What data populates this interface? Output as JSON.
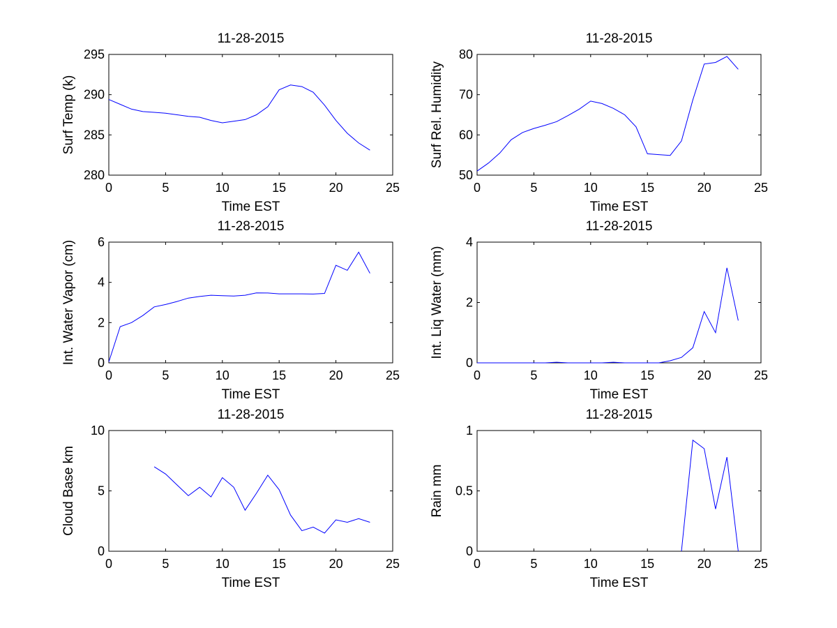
{
  "colors": {
    "line": "#0000ff",
    "axis": "#000000",
    "background": "#ffffff"
  },
  "chart_data": [
    {
      "type": "line",
      "title": "11-28-2015",
      "xlabel": "Time EST",
      "ylabel": "Surf Temp (k)",
      "xlim": [
        0,
        25
      ],
      "ylim": [
        280,
        295
      ],
      "xticks": [
        0,
        5,
        10,
        15,
        20,
        25
      ],
      "yticks": [
        280,
        285,
        290,
        295
      ],
      "x": [
        0,
        1,
        2,
        3,
        4,
        5,
        6,
        7,
        8,
        9,
        10,
        11,
        12,
        13,
        14,
        15,
        16,
        17,
        18,
        19,
        20,
        21,
        22,
        23
      ],
      "y": [
        289.4,
        288.8,
        288.2,
        287.9,
        287.8,
        287.7,
        287.5,
        287.3,
        287.2,
        286.8,
        286.5,
        286.7,
        286.9,
        287.5,
        288.5,
        290.6,
        291.2,
        291.0,
        290.3,
        288.7,
        286.8,
        285.2,
        284.0,
        283.1
      ]
    },
    {
      "type": "line",
      "title": "11-28-2015",
      "xlabel": "Time EST",
      "ylabel": "Surf Rel. Humidity",
      "xlim": [
        0,
        25
      ],
      "ylim": [
        50,
        80
      ],
      "xticks": [
        0,
        5,
        10,
        15,
        20,
        25
      ],
      "yticks": [
        50,
        60,
        70,
        80
      ],
      "x": [
        0,
        1,
        2,
        3,
        4,
        5,
        6,
        7,
        8,
        9,
        10,
        11,
        12,
        13,
        14,
        15,
        16,
        17,
        18,
        19,
        20,
        21,
        22,
        23
      ],
      "y": [
        51.0,
        53.0,
        55.5,
        58.8,
        60.6,
        61.6,
        62.4,
        63.3,
        64.8,
        66.4,
        68.4,
        67.8,
        66.6,
        65.0,
        62.0,
        55.3,
        55.1,
        54.9,
        58.5,
        68.7,
        77.6,
        78.0,
        79.5,
        76.3
      ]
    },
    {
      "type": "line",
      "title": "11-28-2015",
      "xlabel": "Time EST",
      "ylabel": "Int. Water Vapor (cm)",
      "xlim": [
        0,
        25
      ],
      "ylim": [
        0,
        6
      ],
      "xticks": [
        0,
        5,
        10,
        15,
        20,
        25
      ],
      "yticks": [
        0,
        2,
        4,
        6
      ],
      "x": [
        0,
        1,
        2,
        3,
        4,
        5,
        6,
        7,
        8,
        9,
        10,
        11,
        12,
        13,
        14,
        15,
        16,
        17,
        18,
        19,
        20,
        21,
        22,
        23
      ],
      "y": [
        0.05,
        1.8,
        2.0,
        2.35,
        2.78,
        2.9,
        3.05,
        3.22,
        3.3,
        3.36,
        3.34,
        3.32,
        3.36,
        3.48,
        3.47,
        3.43,
        3.43,
        3.43,
        3.42,
        3.45,
        4.85,
        4.6,
        5.5,
        4.45
      ]
    },
    {
      "type": "line",
      "title": "11-28-2015",
      "xlabel": "Time EST",
      "ylabel": "Int. Liq Water (mm)",
      "xlim": [
        0,
        25
      ],
      "ylim": [
        0,
        4
      ],
      "xticks": [
        0,
        5,
        10,
        15,
        20,
        25
      ],
      "yticks": [
        0,
        2,
        4
      ],
      "x": [
        0,
        1,
        2,
        3,
        4,
        5,
        6,
        7,
        8,
        9,
        10,
        11,
        12,
        13,
        14,
        15,
        16,
        17,
        18,
        19,
        20,
        21,
        22,
        23
      ],
      "y": [
        0,
        0,
        0,
        0,
        0,
        0,
        0,
        0.02,
        0,
        0,
        0,
        0,
        0.02,
        0,
        0,
        0,
        0,
        0.07,
        0.18,
        0.5,
        1.7,
        1.0,
        3.15,
        1.4
      ]
    },
    {
      "type": "line",
      "title": "11-28-2015",
      "xlabel": "Time EST",
      "ylabel": "Cloud Base km",
      "xlim": [
        0,
        25
      ],
      "ylim": [
        0,
        10
      ],
      "xticks": [
        0,
        5,
        10,
        15,
        20,
        25
      ],
      "yticks": [
        0,
        5,
        10
      ],
      "x": [
        4,
        5,
        6,
        7,
        8,
        9,
        10,
        11,
        12,
        13,
        14,
        15,
        16,
        17,
        18,
        19,
        20,
        21,
        22,
        23
      ],
      "y": [
        7.0,
        6.4,
        5.5,
        4.6,
        5.3,
        4.5,
        6.1,
        5.3,
        3.4,
        4.8,
        6.3,
        5.1,
        3.0,
        1.7,
        2.0,
        1.5,
        2.6,
        2.4,
        2.7,
        2.4
      ]
    },
    {
      "type": "line",
      "title": "11-28-2015",
      "xlabel": "Time EST",
      "ylabel": "Rain mm",
      "xlim": [
        0,
        25
      ],
      "ylim": [
        0,
        1
      ],
      "xticks": [
        0,
        5,
        10,
        15,
        20,
        25
      ],
      "yticks": [
        0,
        0.5,
        1
      ],
      "ytick_labels": [
        "0",
        "0.5",
        "1"
      ],
      "x": [
        18,
        19,
        20,
        21,
        22,
        23
      ],
      "y": [
        0,
        0.92,
        0.85,
        0.35,
        0.78,
        0
      ]
    }
  ]
}
